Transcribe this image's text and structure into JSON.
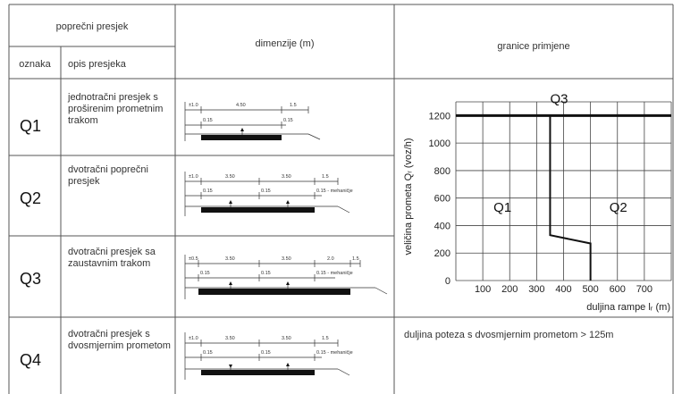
{
  "header": {
    "cross_section": "poprečni presjek",
    "code_col": "oznaka",
    "desc_col": "opis presjeka",
    "dimensions_col": "dimenzije (m)",
    "limits_col": "granice primjene"
  },
  "rows": [
    {
      "code": "Q1",
      "desc": "jednotračni presjek s proširenim prometnim trakom",
      "dims_top": [
        "±1.0",
        "4.50",
        "1.5"
      ],
      "dims_mid": [
        "0.15",
        "0.15"
      ]
    },
    {
      "code": "Q2",
      "desc": "dvotračni poprečni presjek",
      "dims_top": [
        "±1.0",
        "3.50",
        "3.50",
        "1.5"
      ],
      "dims_mid": [
        "0.15",
        "0.15",
        "0.15 - mehaničje"
      ]
    },
    {
      "code": "Q3",
      "desc": "dvotračni presjek sa zaustavnim trakom",
      "dims_top": [
        "±0.5",
        "3.50",
        "3.50",
        "2.0",
        "1.5"
      ],
      "dims_mid": [
        "0.15",
        "0.15",
        "0.15 - mehaničje"
      ]
    },
    {
      "code": "Q4",
      "desc": "dvotračni presjek s dvosmjernim prometom",
      "dims_top": [
        "±1.0",
        "3.50",
        "3.50",
        "1.5"
      ],
      "dims_mid": [
        "0.15",
        "0.15",
        "0.15 - mehaničje"
      ]
    }
  ],
  "q4_limit_note": "duljina poteza s dvosmjernim prometom > 125m",
  "chart_data": {
    "type": "line",
    "title": "",
    "xlabel": "duljina rampe lᵣ (m)",
    "ylabel": "veličina prometa Qᵣ (voz/h)",
    "x_ticks": [
      100,
      200,
      300,
      400,
      500,
      600,
      700
    ],
    "y_ticks": [
      0,
      200,
      400,
      600,
      800,
      1000,
      1200
    ],
    "xlim": [
      0,
      800
    ],
    "ylim": [
      0,
      1300
    ],
    "grid": true,
    "series": [
      {
        "name": "Q3",
        "x": [
          0,
          800
        ],
        "y": [
          1200,
          1200
        ]
      },
      {
        "name": "",
        "x": [
          350,
          350,
          500,
          500
        ],
        "y": [
          1200,
          330,
          270,
          0
        ]
      }
    ],
    "region_labels": [
      {
        "label": "Q3",
        "x": 350,
        "y": 1290
      },
      {
        "label": "Q1",
        "x": 140,
        "y": 500
      },
      {
        "label": "Q2",
        "x": 570,
        "y": 500
      }
    ]
  }
}
